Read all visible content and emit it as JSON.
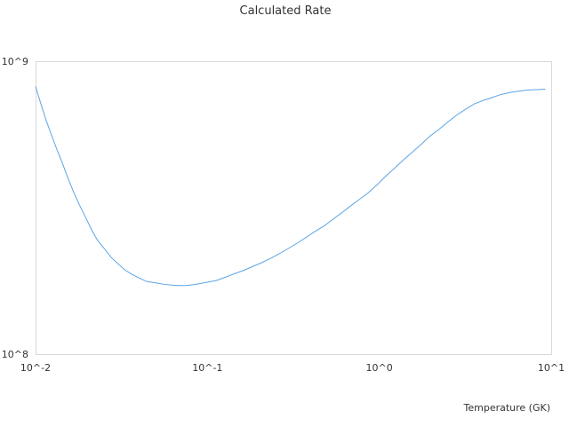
{
  "chart_data": {
    "type": "line",
    "title": "Calculated Rate",
    "xlabel": "Temperature (GK)",
    "ylabel": "",
    "x_scale": "log",
    "y_scale": "log",
    "xlim": [
      0.01,
      10
    ],
    "ylim": [
      100000000,
      1000000000
    ],
    "x_tick_values": [
      0.01,
      0.1,
      1,
      10
    ],
    "x_tick_labels": [
      "10^-2",
      "10^-1",
      "10^0",
      "10^1"
    ],
    "y_tick_values": [
      100000000,
      1000000000
    ],
    "y_tick_labels": [
      "10^8",
      "10^9"
    ],
    "grid": false,
    "legend": "none",
    "series": [
      {
        "color": "#5aa5e6",
        "x": [
          0.01,
          0.0107,
          0.0115,
          0.0124,
          0.0133,
          0.0143,
          0.0154,
          0.0167,
          0.018,
          0.0195,
          0.0211,
          0.0229,
          0.025,
          0.0275,
          0.03,
          0.033,
          0.0365,
          0.04,
          0.0443,
          0.05,
          0.056,
          0.0625,
          0.0683,
          0.075,
          0.0821,
          0.09,
          0.1,
          0.113,
          0.127,
          0.143,
          0.162,
          0.183,
          0.206,
          0.232,
          0.261,
          0.294,
          0.332,
          0.374,
          0.421,
          0.474,
          0.534,
          0.601,
          0.678,
          0.763,
          0.86,
          0.968,
          1.09,
          1.23,
          1.38,
          1.56,
          1.75,
          1.97,
          2.22,
          2.5,
          2.82,
          3.17,
          3.57,
          4.03,
          4.53,
          5.1,
          5.75,
          6.47,
          7.29,
          8.21,
          9.25
        ],
        "y": [
          820000000,
          720000000,
          630000000,
          558000000,
          500000000,
          450000000,
          400000000,
          356000000,
          323000000,
          294000000,
          267000000,
          245000000,
          230000000,
          214000000,
          204000000,
          194000000,
          187000000,
          182000000,
          177000000,
          175000000,
          173000000,
          172000000,
          171500000,
          171500000,
          172500000,
          174000000,
          176000000,
          178500000,
          183000000,
          188000000,
          193000000,
          199000000,
          205000000,
          212000000,
          220000000,
          229000000,
          239000000,
          250000000,
          262000000,
          273000000,
          288000000,
          303000000,
          320000000,
          337000000,
          355000000,
          378000000,
          405000000,
          432000000,
          460000000,
          490000000,
          520000000,
          555000000,
          585000000,
          620000000,
          655000000,
          685000000,
          715000000,
          735000000,
          752000000,
          770000000,
          782000000,
          790000000,
          797000000,
          800000000,
          803000000
        ]
      }
    ]
  }
}
